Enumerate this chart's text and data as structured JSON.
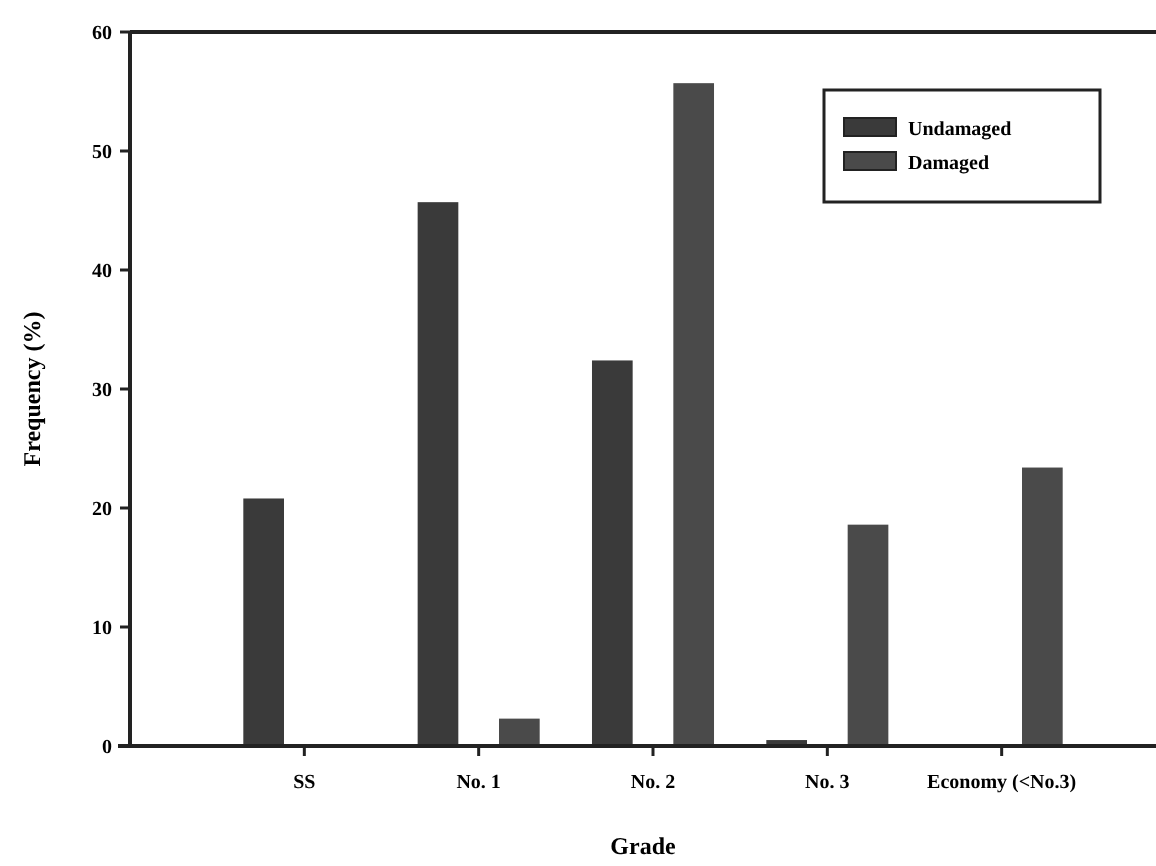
{
  "chart_data": {
    "type": "bar",
    "xlabel": "Grade",
    "ylabel": "Frequency (%)",
    "categories": [
      "SS",
      "No. 1",
      "No. 2",
      "No. 3",
      "Economy (<No.3)"
    ],
    "series": [
      {
        "name": "Undamaged",
        "color": "#3a3a3a",
        "values": [
          20.8,
          45.7,
          32.4,
          0.5,
          0
        ]
      },
      {
        "name": "Damaged",
        "color": "#4a4a4a",
        "values": [
          0,
          2.3,
          55.7,
          18.6,
          23.4
        ]
      }
    ],
    "ylim": [
      0,
      60
    ],
    "yticks": [
      0,
      10,
      20,
      30,
      40,
      50,
      60
    ],
    "grid": false,
    "legend": "top right"
  }
}
